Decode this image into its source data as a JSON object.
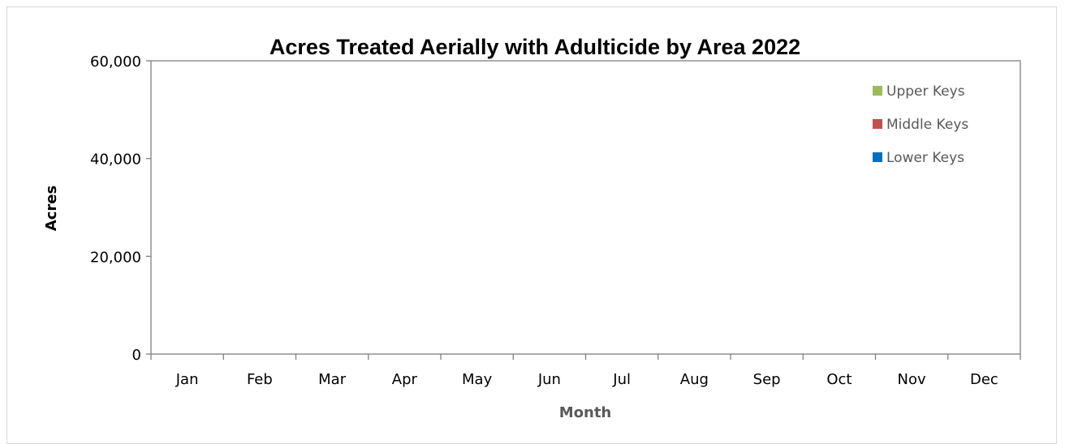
{
  "chart_data": {
    "type": "bar",
    "stacked": true,
    "title": "Acres Treated Aerially with Adulticide by Area 2022",
    "xlabel": "Month",
    "ylabel": "Acres",
    "categories": [
      "Jan",
      "Feb",
      "Mar",
      "Apr",
      "May",
      "Jun",
      "Jul",
      "Aug",
      "Sep",
      "Oct",
      "Nov",
      "Dec"
    ],
    "ylim": [
      0,
      60000
    ],
    "yticks": [
      0,
      20000,
      40000,
      60000
    ],
    "ytick_labels": [
      "0",
      "20,000",
      "40,000",
      "60,000"
    ],
    "grid": false,
    "legend_position": "right",
    "series": [
      {
        "name": "Upper Keys",
        "color": "#9bbb59",
        "values": [
          0,
          0,
          0,
          0,
          0,
          0,
          0,
          0,
          0,
          0,
          0,
          0
        ]
      },
      {
        "name": "Middle Keys",
        "color": "#c0504d",
        "values": [
          0,
          0,
          0,
          0,
          0,
          0,
          0,
          0,
          0,
          0,
          0,
          0
        ]
      },
      {
        "name": "Lower Keys",
        "color": "#0070c0",
        "values": [
          0,
          0,
          0,
          0,
          0,
          0,
          0,
          0,
          0,
          0,
          0,
          0
        ]
      }
    ]
  }
}
